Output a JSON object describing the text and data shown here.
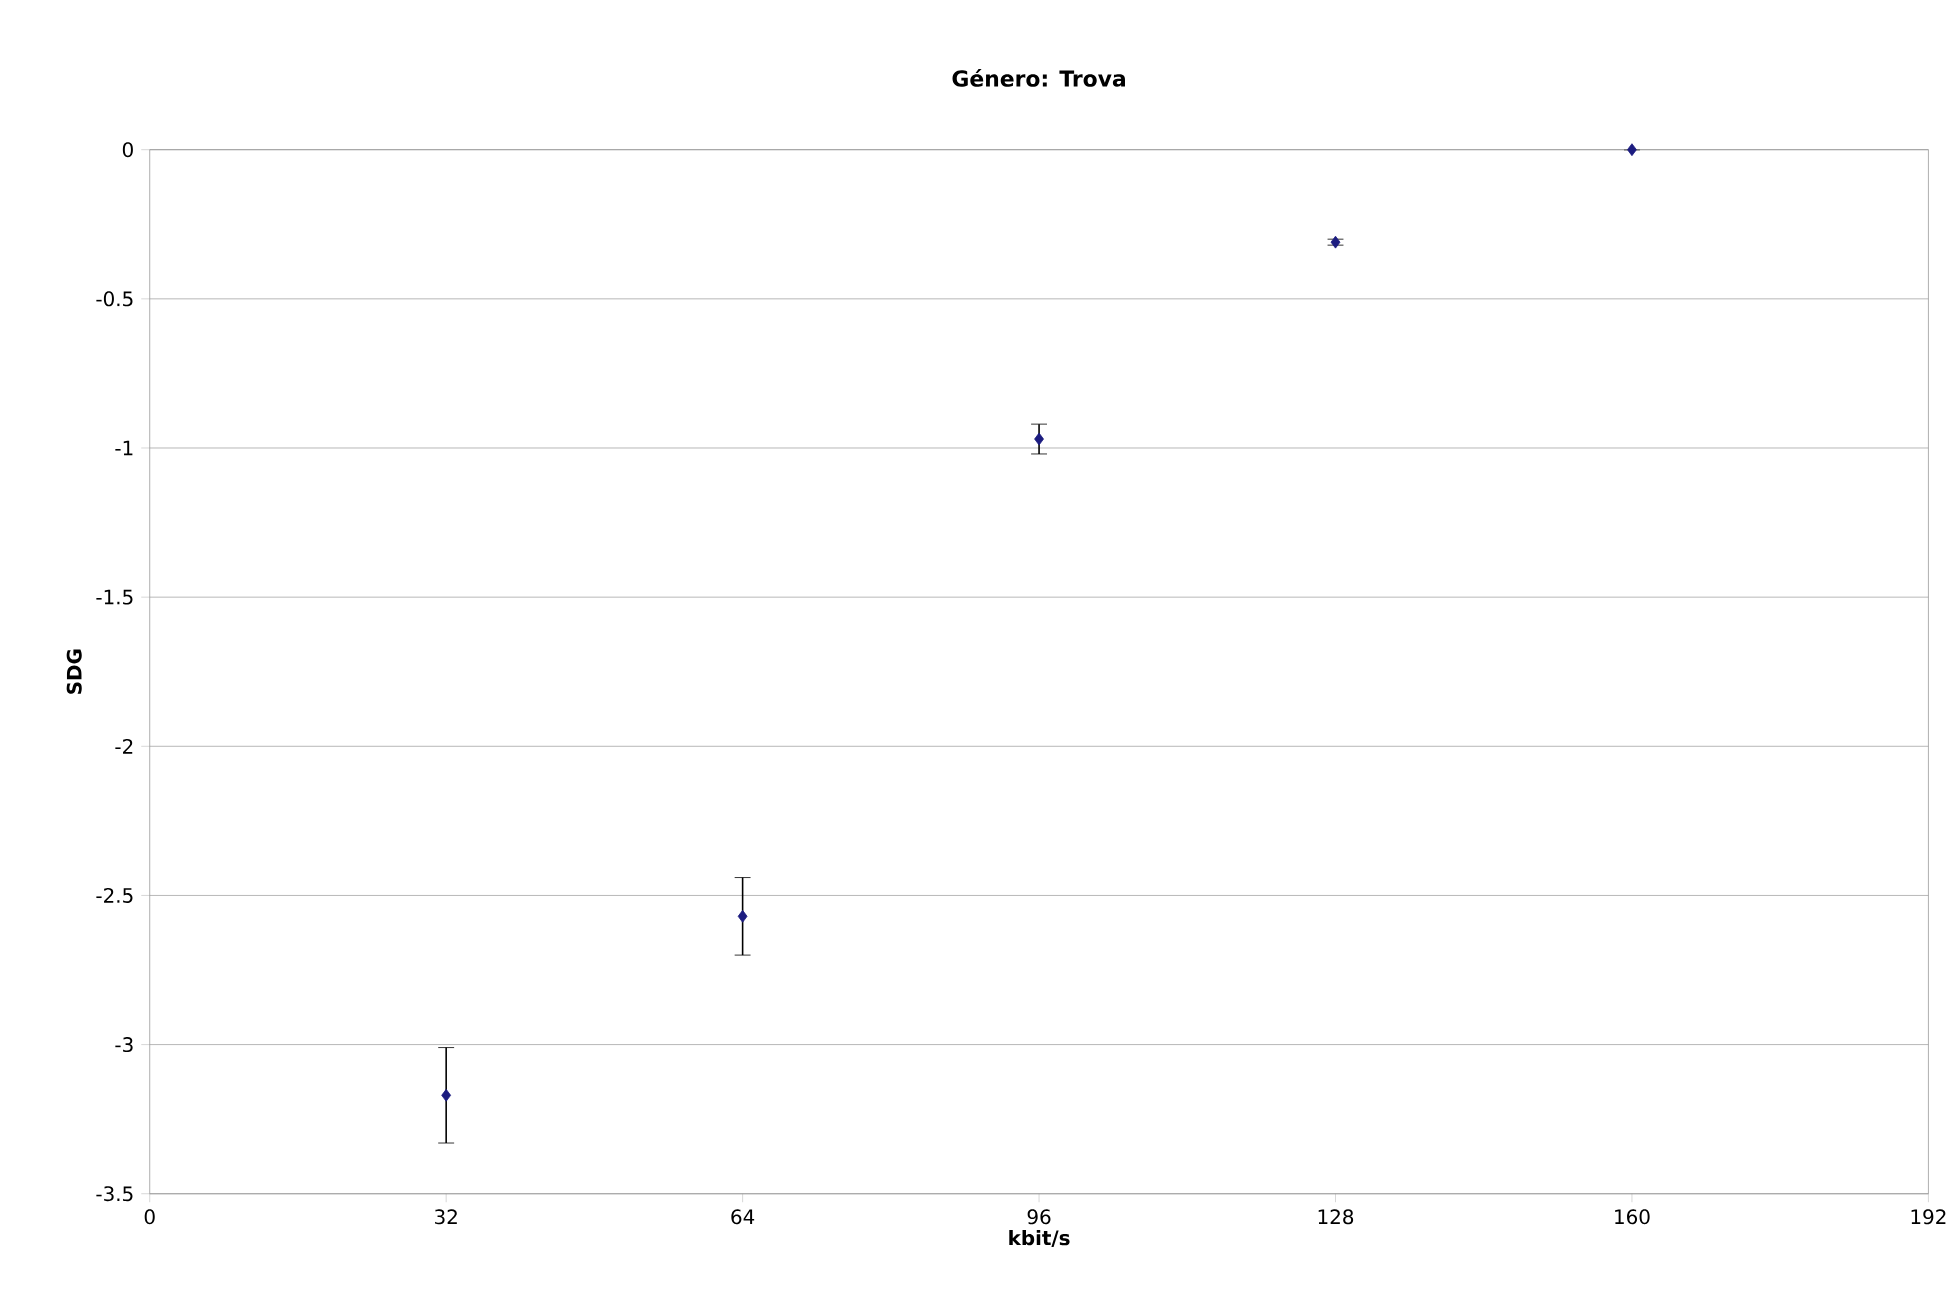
{
  "chart_data": {
    "type": "scatter",
    "title": "Género: Trova",
    "xlabel": "kbit/s",
    "ylabel": "SDG",
    "x": [
      32,
      64,
      96,
      128,
      160
    ],
    "series": [
      {
        "color": "#1c1c80",
        "values": [
          -3.17,
          -2.57,
          -0.97,
          -0.31,
          0
        ],
        "errors": [
          0.16,
          0.13,
          0.05,
          0.01,
          null
        ]
      }
    ],
    "xlim": [
      0,
      192
    ],
    "xticks": [
      0,
      32,
      64,
      96,
      128,
      160,
      192
    ],
    "ylim": [
      -3.5,
      0
    ],
    "yticks": [
      -3.5,
      -3,
      -2.5,
      -2,
      -1.5,
      -1,
      -0.5,
      0
    ],
    "grid": "y",
    "marker": "diamond"
  }
}
